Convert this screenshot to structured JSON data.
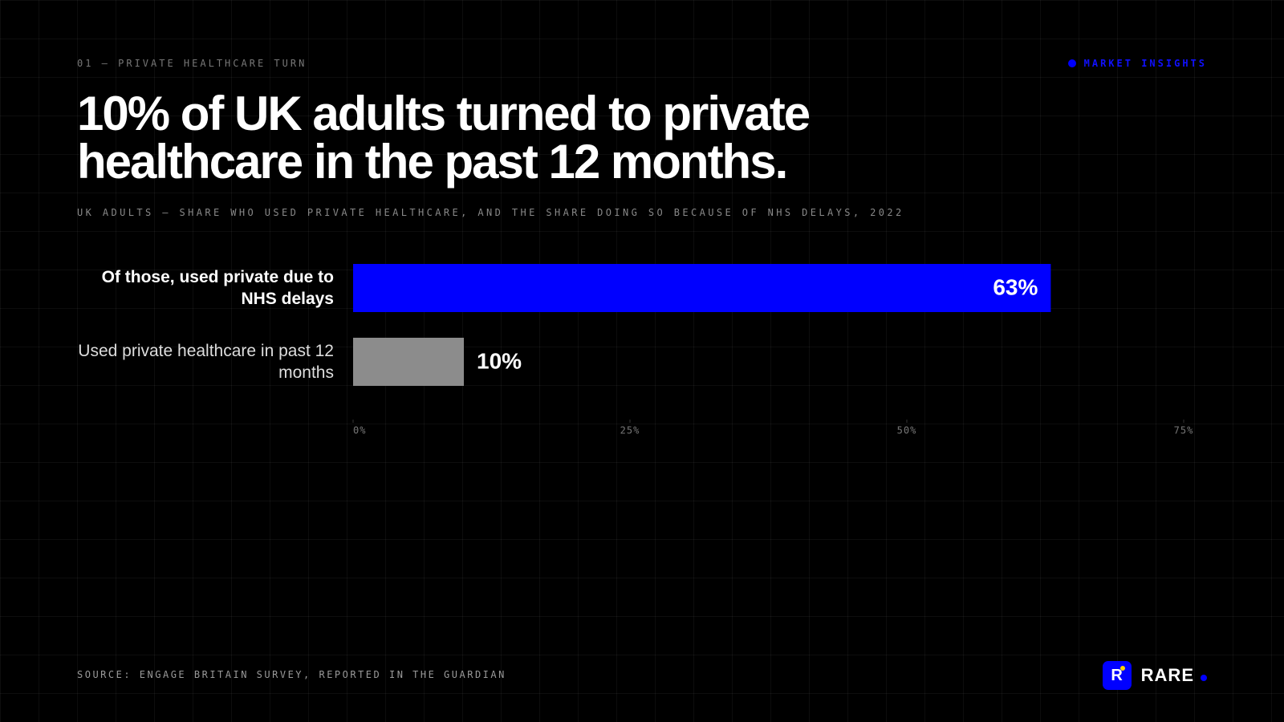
{
  "kicker": "01 — PRIVATE HEALTHCARE TURN",
  "tag": "MARKET INSIGHTS",
  "source": "SOURCE: ENGAGE BRITAIN SURVEY, REPORTED IN THE GUARDIAN",
  "brand": {
    "logo": "R",
    "name": "RARE"
  },
  "chart_data": {
    "type": "bar",
    "orientation": "horizontal",
    "title": "10% of UK adults turned to private healthcare in the past 12 months.",
    "subtitle": "UK ADULTS — SHARE WHO USED PRIVATE HEALTHCARE, AND THE SHARE DOING SO BECAUSE OF NHS DELAYS, 2022",
    "categories": [
      "Of those, used private due to NHS delays",
      "Used private healthcare in past 12 months"
    ],
    "values": [
      63,
      10
    ],
    "value_labels": [
      "63%",
      "10%"
    ],
    "colors": [
      "#0000ff",
      "#8c8c8c"
    ],
    "xlim": [
      0,
      75
    ],
    "xticks": [
      {
        "value": 0,
        "label": "0%"
      },
      {
        "value": 25,
        "label": "25%"
      },
      {
        "value": 50,
        "label": "50%"
      },
      {
        "value": 75,
        "label": "75%"
      }
    ]
  }
}
